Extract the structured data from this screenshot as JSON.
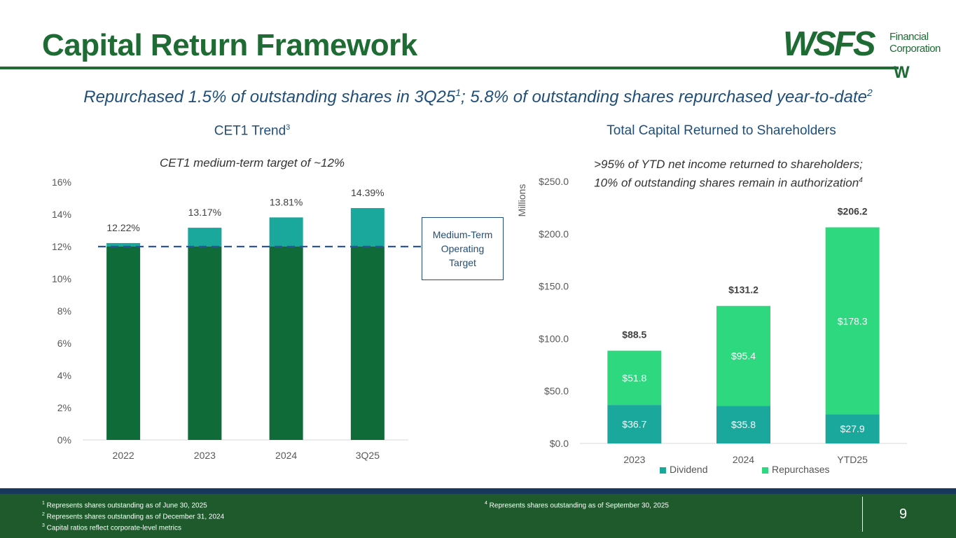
{
  "header": {
    "title": "Capital Return Framework",
    "logo_main": "WSFS",
    "logo_sub_line1": "Financial",
    "logo_sub_line2": "Corporation",
    "logo_mark": "W"
  },
  "subtitle": {
    "part1": "Repurchased 1.5% of outstanding shares in 3Q25",
    "sup1": "1",
    "part2": "; 5.8% of outstanding shares repurchased year-to-date",
    "sup2": "2"
  },
  "left_chart": {
    "title": "CET1 Trend",
    "title_sup": "3",
    "note": "CET1 medium-term target of ~12%",
    "target_label_line1": "Medium-Term",
    "target_label_line2": "Operating",
    "target_label_line3": "Target"
  },
  "right_chart": {
    "title": "Total Capital Returned to Shareholders",
    "note_line1": ">95% of YTD net income returned to shareholders;",
    "note_line2": "10% of outstanding shares remain in authorization",
    "note_sup": "4"
  },
  "chart_data": [
    {
      "type": "bar",
      "title": "CET1 Trend",
      "categories": [
        "2022",
        "2023",
        "2024",
        "3Q25"
      ],
      "values": [
        12.22,
        13.17,
        13.81,
        14.39
      ],
      "data_labels": [
        "12.22%",
        "13.17%",
        "13.81%",
        "14.39%"
      ],
      "ylim": [
        0,
        16
      ],
      "yticks": [
        "0%",
        "2%",
        "4%",
        "6%",
        "8%",
        "10%",
        "12%",
        "14%",
        "16%"
      ],
      "target_line": 12,
      "colors": {
        "base": "#0f6b37",
        "above_target": "#19a89b",
        "target_line": "#2f5597"
      }
    },
    {
      "type": "bar",
      "stacked": true,
      "title": "Total Capital Returned to Shareholders",
      "ylabel": "Millions",
      "categories": [
        "2023",
        "2024",
        "YTD25"
      ],
      "series": [
        {
          "name": "Dividend",
          "values": [
            36.7,
            35.8,
            27.9
          ],
          "labels": [
            "$36.7",
            "$35.8",
            "$27.9"
          ],
          "color": "#19a89b"
        },
        {
          "name": "Repurchases",
          "values": [
            51.8,
            95.4,
            178.3
          ],
          "labels": [
            "$51.8",
            "$95.4",
            "$178.3"
          ],
          "color": "#2ed87f"
        }
      ],
      "totals": [
        "$88.5",
        "$131.2",
        "$206.2"
      ],
      "ylim": [
        0,
        250
      ],
      "yticks": [
        "$0.0",
        "$50.0",
        "$100.0",
        "$150.0",
        "$200.0",
        "$250.0"
      ],
      "legend": "bottom"
    }
  ],
  "footer": {
    "fn1_sup": "1",
    "fn1": " Represents shares outstanding as of June 30, 2025",
    "fn2_sup": "2",
    "fn2": " Represents shares outstanding as of December 31, 2024",
    "fn3_sup": "3",
    "fn3": " Capital ratios reflect corporate-level metrics",
    "fn4_sup": "4",
    "fn4": " Represents shares outstanding as of September 30, 2025",
    "page_number": "9"
  }
}
